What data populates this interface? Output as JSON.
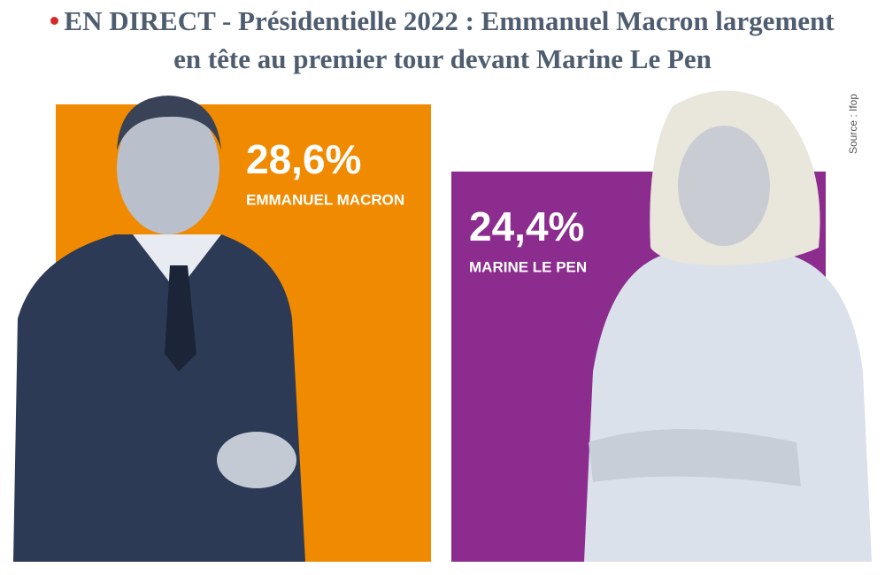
{
  "chart_data": {
    "type": "bar",
    "title": "EN DIRECT - Présidentielle 2022 : Emmanuel Macron largement en tête au premier tour devant Marine Le Pen",
    "categories": [
      "EMMANUEL MACRON",
      "MARINE LE PEN"
    ],
    "values": [
      28.6,
      24.4
    ],
    "value_labels": [
      "28,6%",
      "24,4%"
    ],
    "colors": [
      "#f08a00",
      "#8b2c8e"
    ],
    "source": "Source : Ifop"
  }
}
